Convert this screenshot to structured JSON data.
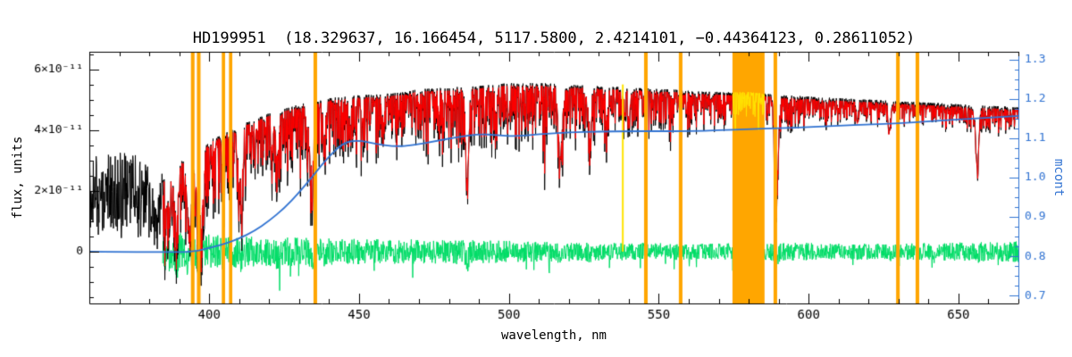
{
  "chart_data": {
    "type": "line",
    "title": "HD199951  (18.329637, 16.166454, 5117.5800, 2.4214101, −0.44364123, 0.28611052)",
    "xlabel": "wavelength, nm",
    "ylabel_left": "flux, units",
    "ylabel_right": "mcont",
    "x_range": [
      360,
      670
    ],
    "x_major_ticks": [
      400,
      450,
      500,
      550,
      600,
      650
    ],
    "x_minor_step": 10,
    "flux_scale": 1e-11,
    "flux_range_units": [
      -1.71,
      6.59
    ],
    "flux_major_ticks": [
      0,
      2,
      4,
      6
    ],
    "flux_tick_labels": [
      "0",
      "2×10⁻¹¹",
      "4×10⁻¹¹",
      "6×10⁻¹¹"
    ],
    "flux_minor_step_units": 0.5,
    "mcont_range": [
      0.68,
      1.32
    ],
    "mcont_major_ticks": [
      0.7,
      0.8,
      0.9,
      1.0,
      1.1,
      1.2,
      1.3
    ],
    "mcont_minor_step": 0.025,
    "colors": {
      "observed": "#000000",
      "model": "#ff0000",
      "residual": "#00dd66",
      "continuum": "#3173d2",
      "masked_band": "#ffa600",
      "masked_spectrum": "#ffe400",
      "axis": "#000000",
      "right_axis": "#3173d2",
      "background": "#ffffff"
    },
    "masked_bands_nm": [
      [
        393.9,
        395.1
      ],
      [
        395.9,
        397.1
      ],
      [
        404.2,
        405.3
      ],
      [
        406.6,
        407.7
      ],
      [
        434.8,
        436.0
      ],
      [
        545.1,
        546.3
      ],
      [
        556.7,
        557.9
      ],
      [
        574.6,
        585.3
      ],
      [
        588.3,
        589.5
      ],
      [
        629.2,
        630.4
      ],
      [
        635.7,
        636.9
      ]
    ],
    "highlight_lines_nm": [
      538.0
    ],
    "noise_seed": 1234,
    "series": {
      "model_start_nm": 384.5,
      "envelope": {
        "nm": [
          360,
          368,
          374,
          379,
          381,
          382.5,
          384,
          388,
          392,
          396,
          400,
          405,
          410,
          415,
          420,
          425,
          430,
          435,
          440,
          445,
          450,
          455,
          460,
          465,
          470,
          475,
          480,
          485,
          490,
          495,
          500,
          505,
          510,
          515,
          520,
          525,
          530,
          535,
          540,
          545,
          550,
          555,
          560,
          565,
          570,
          575,
          580,
          585,
          590,
          595,
          600,
          610,
          620,
          630,
          640,
          650,
          660,
          670
        ],
        "top_units": [
          3.1,
          3.25,
          3.2,
          3.0,
          2.3,
          1.3,
          2.5,
          2.9,
          3.1,
          3.3,
          3.6,
          3.85,
          4.1,
          4.3,
          4.5,
          4.65,
          4.8,
          4.9,
          5.0,
          5.05,
          5.1,
          5.12,
          5.15,
          5.2,
          5.3,
          5.32,
          5.35,
          5.38,
          5.4,
          5.45,
          5.5,
          5.5,
          5.5,
          5.48,
          5.45,
          5.42,
          5.4,
          5.38,
          5.35,
          5.32,
          5.3,
          5.28,
          5.25,
          5.22,
          5.2,
          5.2,
          5.2,
          5.15,
          5.1,
          5.08,
          5.05,
          5.0,
          4.95,
          4.9,
          4.85,
          4.8,
          4.75,
          4.7
        ],
        "bottom_units": [
          1.25,
          1.2,
          1.3,
          1.1,
          0.4,
          0.1,
          0.3,
          0.45,
          0.6,
          0.8,
          1.3,
          1.5,
          1.7,
          1.9,
          2.1,
          2.2,
          2.3,
          2.45,
          2.6,
          2.75,
          2.9,
          3.0,
          3.1,
          3.2,
          3.3,
          3.25,
          3.2,
          3.3,
          3.4,
          3.45,
          3.5,
          3.45,
          3.4,
          3.35,
          3.3,
          3.4,
          3.5,
          3.6,
          3.7,
          3.75,
          3.8,
          3.85,
          3.9,
          3.95,
          4.0,
          4.05,
          4.1,
          4.0,
          3.9,
          4.0,
          4.1,
          4.2,
          4.2,
          4.2,
          4.2,
          4.1,
          3.9,
          4.0
        ]
      },
      "absorption_lines": [
        {
          "nm": 386.0,
          "depth_units": 1.2,
          "sigma_nm": 0.6
        },
        {
          "nm": 388.9,
          "depth_units": 1.7,
          "sigma_nm": 0.7
        },
        {
          "nm": 393.4,
          "depth_units": 2.3,
          "sigma_nm": 0.8
        },
        {
          "nm": 396.8,
          "depth_units": 2.2,
          "sigma_nm": 0.8
        },
        {
          "nm": 404.6,
          "depth_units": 1.1,
          "sigma_nm": 0.4
        },
        {
          "nm": 410.2,
          "depth_units": 1.8,
          "sigma_nm": 0.6
        },
        {
          "nm": 422.7,
          "depth_units": 1.4,
          "sigma_nm": 0.5
        },
        {
          "nm": 434.0,
          "depth_units": 2.0,
          "sigma_nm": 0.6
        },
        {
          "nm": 438.4,
          "depth_units": 1.1,
          "sigma_nm": 0.4
        },
        {
          "nm": 447.0,
          "depth_units": 0.8,
          "sigma_nm": 0.35
        },
        {
          "nm": 458.0,
          "depth_units": 0.7,
          "sigma_nm": 0.3
        },
        {
          "nm": 486.1,
          "depth_units": 3.0,
          "sigma_nm": 0.5
        },
        {
          "nm": 495.7,
          "depth_units": 0.8,
          "sigma_nm": 0.3
        },
        {
          "nm": 517.2,
          "depth_units": 2.2,
          "sigma_nm": 0.6
        },
        {
          "nm": 527.0,
          "depth_units": 1.3,
          "sigma_nm": 0.4
        },
        {
          "nm": 532.8,
          "depth_units": 0.9,
          "sigma_nm": 0.3
        },
        {
          "nm": 589.2,
          "depth_units": 3.5,
          "sigma_nm": 0.5
        },
        {
          "nm": 616.2,
          "depth_units": 0.7,
          "sigma_nm": 0.3
        },
        {
          "nm": 627.0,
          "depth_units": 0.9,
          "sigma_nm": 0.35
        },
        {
          "nm": 656.3,
          "depth_units": 2.0,
          "sigma_nm": 0.5
        }
      ],
      "residual_amplitude": {
        "nm": [
          384,
          395,
          410,
          430,
          450,
          470,
          490,
          510,
          530,
          550,
          570,
          590,
          610,
          630,
          650,
          670
        ],
        "amp_units": [
          0.68,
          0.62,
          0.52,
          0.46,
          0.42,
          0.4,
          0.38,
          0.33,
          0.3,
          0.28,
          0.27,
          0.3,
          0.27,
          0.26,
          0.3,
          0.34
        ]
      },
      "continuum_points": {
        "nm": [
          360,
          388,
          395,
          400,
          405,
          410,
          415,
          420,
          425,
          430,
          435,
          440,
          445,
          450,
          456,
          462,
          468,
          475,
          482,
          490,
          496,
          502,
          510,
          520,
          530,
          540,
          550,
          560,
          570,
          580,
          590,
          600,
          610,
          620,
          630,
          640,
          650,
          660,
          670
        ],
        "mcont": [
          0.812,
          0.81,
          0.812,
          0.821,
          0.831,
          0.845,
          0.864,
          0.89,
          0.922,
          0.962,
          1.008,
          1.055,
          1.09,
          1.095,
          1.085,
          1.079,
          1.082,
          1.092,
          1.102,
          1.111,
          1.108,
          1.105,
          1.11,
          1.115,
          1.117,
          1.118,
          1.118,
          1.118,
          1.12,
          1.123,
          1.126,
          1.128,
          1.132,
          1.135,
          1.138,
          1.143,
          1.148,
          1.152,
          1.157
        ]
      }
    }
  }
}
